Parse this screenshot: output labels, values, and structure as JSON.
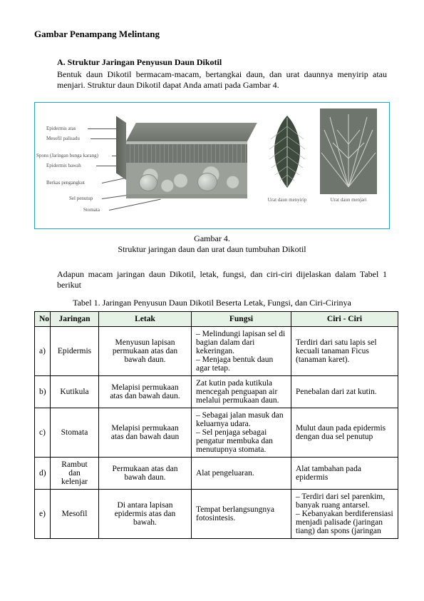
{
  "title": "Gambar Penampang Melintang",
  "section": {
    "heading": "A.  Struktur Jaringan Penyusun Daun Dikotil",
    "body": "Bentuk daun Dikotil bermacam-macam, bertangkai daun, dan urat daunnya menyirip atau menjari. Struktur daun Dikotil dapat Anda amati pada Gambar 4."
  },
  "figure": {
    "labels": {
      "l1": "Epidermis atas",
      "l2": "Mesofil palisadu",
      "l3": "Spons (Jaringan bunga karang)",
      "l4": "Epidermis bawah",
      "l5": "Berkas pengangkut",
      "l6": "Sel penutup",
      "l7": "Stomata"
    },
    "leaf1_caption": "Urat daun menyirip",
    "leaf2_caption": "Urat daun menjari",
    "caption_line1": "Gambar 4.",
    "caption_line2": "Struktur jaringan daun dan urat daun tumbuhan Dikotil"
  },
  "para_after_fig": "Adapun macam jaringan daun Dikotil, letak, fungsi, dan ciri-ciri dijelaskan dalam Tabel 1 berikut",
  "table": {
    "caption": "Tabel 1. Jaringan Penyusun Daun Dikotil Beserta Letak, Fungsi, dan Ciri-Cirinya",
    "headers": {
      "no": "No",
      "jaringan": "Jaringan",
      "letak": "Letak",
      "fungsi": "Fungsi",
      "ciri": "Ciri - Ciri"
    },
    "rows": [
      {
        "no": "a)",
        "jaringan": "Epidermis",
        "letak": "Menyusun lapisan permukaan atas dan bawah daun.",
        "fungsi": "– Melindungi lapisan sel di bagian dalam dari kekeringan.\n– Menjaga bentuk daun agar tetap.",
        "ciri": "Terdiri dari satu lapis sel kecuali tanaman Ficus (tanaman karet)."
      },
      {
        "no": "b)",
        "jaringan": "Kutikula",
        "letak": "Melapisi permukaan\natas dan bawah daun.",
        "fungsi": "Zat kutin pada kutikula mencegah penguapan air melalui permukaan daun.",
        "ciri": "Penebalan dari zat kutin."
      },
      {
        "no": "c)",
        "jaringan": "Stomata",
        "letak": "Melapisi permukaan\natas dan bawah daun",
        "fungsi": "– Sebagai jalan masuk dan keluarnya udara.\n– Sel penjaga sebagai pengatur membuka dan\nmenutupnya stomata.",
        "ciri": "Mulut daun pada epidermis dengan dua sel penutup"
      },
      {
        "no": "d)",
        "jaringan": "Rambut dan kelenjar",
        "letak": "Permukaan atas dan\nbawah daun.",
        "fungsi": "Alat pengeluaran.",
        "ciri": "Alat tambahan pada epidermis"
      },
      {
        "no": "e)",
        "jaringan": "Mesofil",
        "letak": "Di antara lapisan epidermis atas dan\nbawah.",
        "fungsi": "Tempat berlangsungnya fotosintesis.",
        "ciri": "– Terdiri dari sel parenkim, banyak ruang antarsel.\n– Kebanyakan berdiferensiasi menjadi palisade (jaringan tiang) dan spons (jaringan"
      }
    ]
  }
}
